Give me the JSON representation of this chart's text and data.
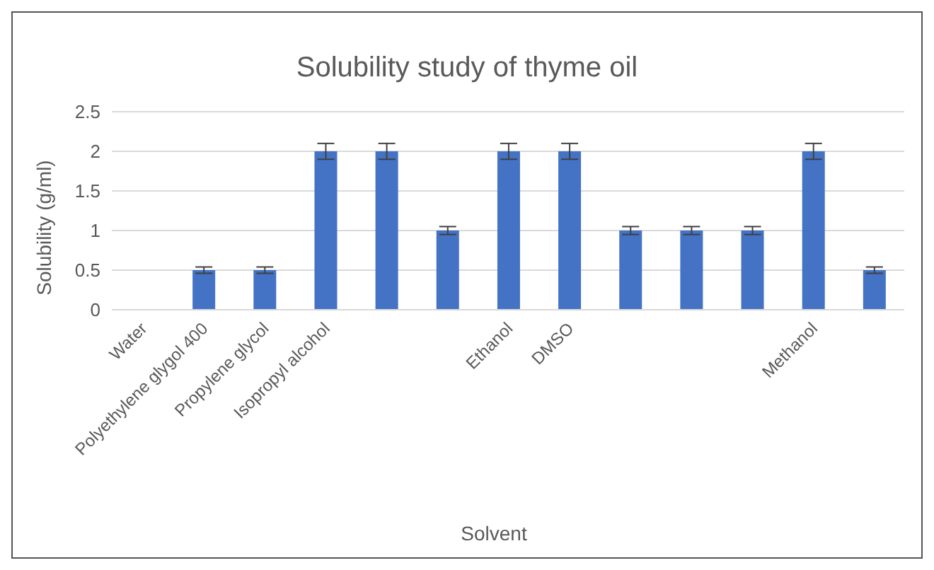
{
  "chart_data": {
    "type": "bar",
    "title": "Solubility study of thyme oil",
    "xlabel": "Solvent",
    "ylabel": "Solubility (g/ml)",
    "categories": [
      "Water",
      "Polyethylene glygol 400",
      "Propylene glycol",
      "Isopropyl alcohol",
      null,
      null,
      "Ethanol",
      "DMSO",
      null,
      null,
      null,
      "Methanol",
      null
    ],
    "values": [
      0,
      0.5,
      0.5,
      2,
      2,
      1,
      2,
      2,
      1,
      1,
      1,
      2,
      0.5
    ],
    "errors": [
      null,
      0.04,
      0.04,
      0.1,
      0.1,
      0.05,
      0.1,
      0.1,
      0.05,
      0.05,
      0.05,
      0.1,
      0.04
    ],
    "color": "#4472c4",
    "ylim": [
      0,
      2.5
    ],
    "yticks": [
      0,
      0.5,
      1,
      1.5,
      2,
      2.5
    ],
    "grid": "y",
    "legend": false
  }
}
